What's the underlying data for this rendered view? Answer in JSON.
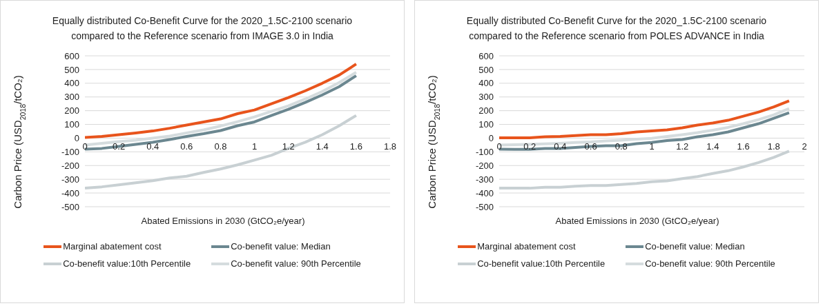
{
  "chart_data": [
    {
      "type": "line",
      "title": "Equally distributed Co-Benefit Curve for the 2020_1.5C-2100 scenario compared to the Reference scenario from IMAGE 3.0 in India",
      "xlabel": "Abated Emissions in 2030 (GtCO₂e/year)",
      "ylabel": "Carbon Price (USD$_{2018}$/tCO₂)",
      "x": [
        0,
        0.1,
        0.2,
        0.3,
        0.4,
        0.5,
        0.6,
        0.7,
        0.8,
        0.9,
        1.0,
        1.1,
        1.2,
        1.3,
        1.4,
        1.5,
        1.6
      ],
      "series": [
        {
          "name": "Marginal abatement cost",
          "color": "#e8541c",
          "values": [
            5,
            12,
            25,
            38,
            52,
            72,
            95,
            118,
            140,
            178,
            205,
            250,
            295,
            345,
            400,
            460,
            540
          ]
        },
        {
          "name": "Co-benefit value: Median",
          "color": "#6b8790",
          "values": [
            -80,
            -75,
            -60,
            -45,
            -30,
            -10,
            12,
            32,
            55,
            90,
            118,
            165,
            210,
            260,
            315,
            375,
            455
          ]
        },
        {
          "name": "Co-benefit value:10th Percentile",
          "color": "#c8d0d3",
          "values": [
            -365,
            -355,
            -340,
            -325,
            -310,
            -290,
            -278,
            -250,
            -225,
            -195,
            -160,
            -125,
            -75,
            -30,
            25,
            90,
            165
          ]
        },
        {
          "name": "Co-benefit value: 90th Percentile",
          "color": "#d5dcde",
          "values": [
            -50,
            -38,
            -25,
            -15,
            0,
            15,
            38,
            60,
            88,
            120,
            155,
            195,
            235,
            285,
            340,
            405,
            480
          ]
        }
      ],
      "xlim": [
        0,
        1.8
      ],
      "xticks": [
        0,
        0.2,
        0.4,
        0.6,
        0.8,
        1,
        1.2,
        1.4,
        1.6,
        1.8
      ],
      "ylim": [
        -500,
        600
      ],
      "yticks": [
        -500,
        -400,
        -300,
        -200,
        -100,
        0,
        100,
        200,
        300,
        400,
        500,
        600
      ],
      "grid": "y",
      "legend": "bottom",
      "marker": "none",
      "line_style": "solid"
    },
    {
      "type": "line",
      "title": "Equally distributed Co-Benefit Curve for the 2020_1.5C-2100 scenario compared to the Reference scenario from POLES ADVANCE in India",
      "xlabel": "Abated Emissions in 2030 (GtCO₂e/year)",
      "ylabel": "Carbon Price (USD$_{2018}$/tCO₂)",
      "x": [
        0,
        0.1,
        0.2,
        0.3,
        0.4,
        0.5,
        0.6,
        0.7,
        0.8,
        0.9,
        1.0,
        1.1,
        1.2,
        1.3,
        1.4,
        1.5,
        1.6,
        1.7,
        1.8,
        1.9
      ],
      "series": [
        {
          "name": "Marginal abatement cost",
          "color": "#e8541c",
          "values": [
            2,
            2,
            2,
            10,
            12,
            18,
            25,
            25,
            32,
            45,
            52,
            60,
            75,
            95,
            110,
            130,
            160,
            190,
            228,
            272
          ]
        },
        {
          "name": "Co-benefit value: Median",
          "color": "#6b8790",
          "values": [
            -80,
            -82,
            -82,
            -75,
            -75,
            -68,
            -60,
            -55,
            -55,
            -40,
            -32,
            -18,
            -10,
            10,
            25,
            45,
            75,
            105,
            145,
            185
          ]
        },
        {
          "name": "Co-benefit value:10th Percentile",
          "color": "#c8d0d3",
          "values": [
            -365,
            -365,
            -365,
            -358,
            -358,
            -350,
            -345,
            -345,
            -338,
            -330,
            -318,
            -312,
            -295,
            -280,
            -258,
            -238,
            -210,
            -178,
            -140,
            -95
          ]
        },
        {
          "name": "Co-benefit value: 90th Percentile",
          "color": "#d5dcde",
          "values": [
            -50,
            -48,
            -45,
            -42,
            -38,
            -32,
            -28,
            -20,
            -15,
            -8,
            -2,
            12,
            25,
            40,
            58,
            78,
            105,
            135,
            170,
            215
          ]
        }
      ],
      "xlim": [
        0,
        2
      ],
      "xticks": [
        0,
        0.2,
        0.4,
        0.6,
        0.8,
        1,
        1.2,
        1.4,
        1.6,
        1.8,
        2
      ],
      "ylim": [
        -500,
        600
      ],
      "yticks": [
        -500,
        -400,
        -300,
        -200,
        -100,
        0,
        100,
        200,
        300,
        400,
        500,
        600
      ],
      "grid": "y",
      "legend": "bottom",
      "marker": "none",
      "line_style": "solid"
    }
  ]
}
